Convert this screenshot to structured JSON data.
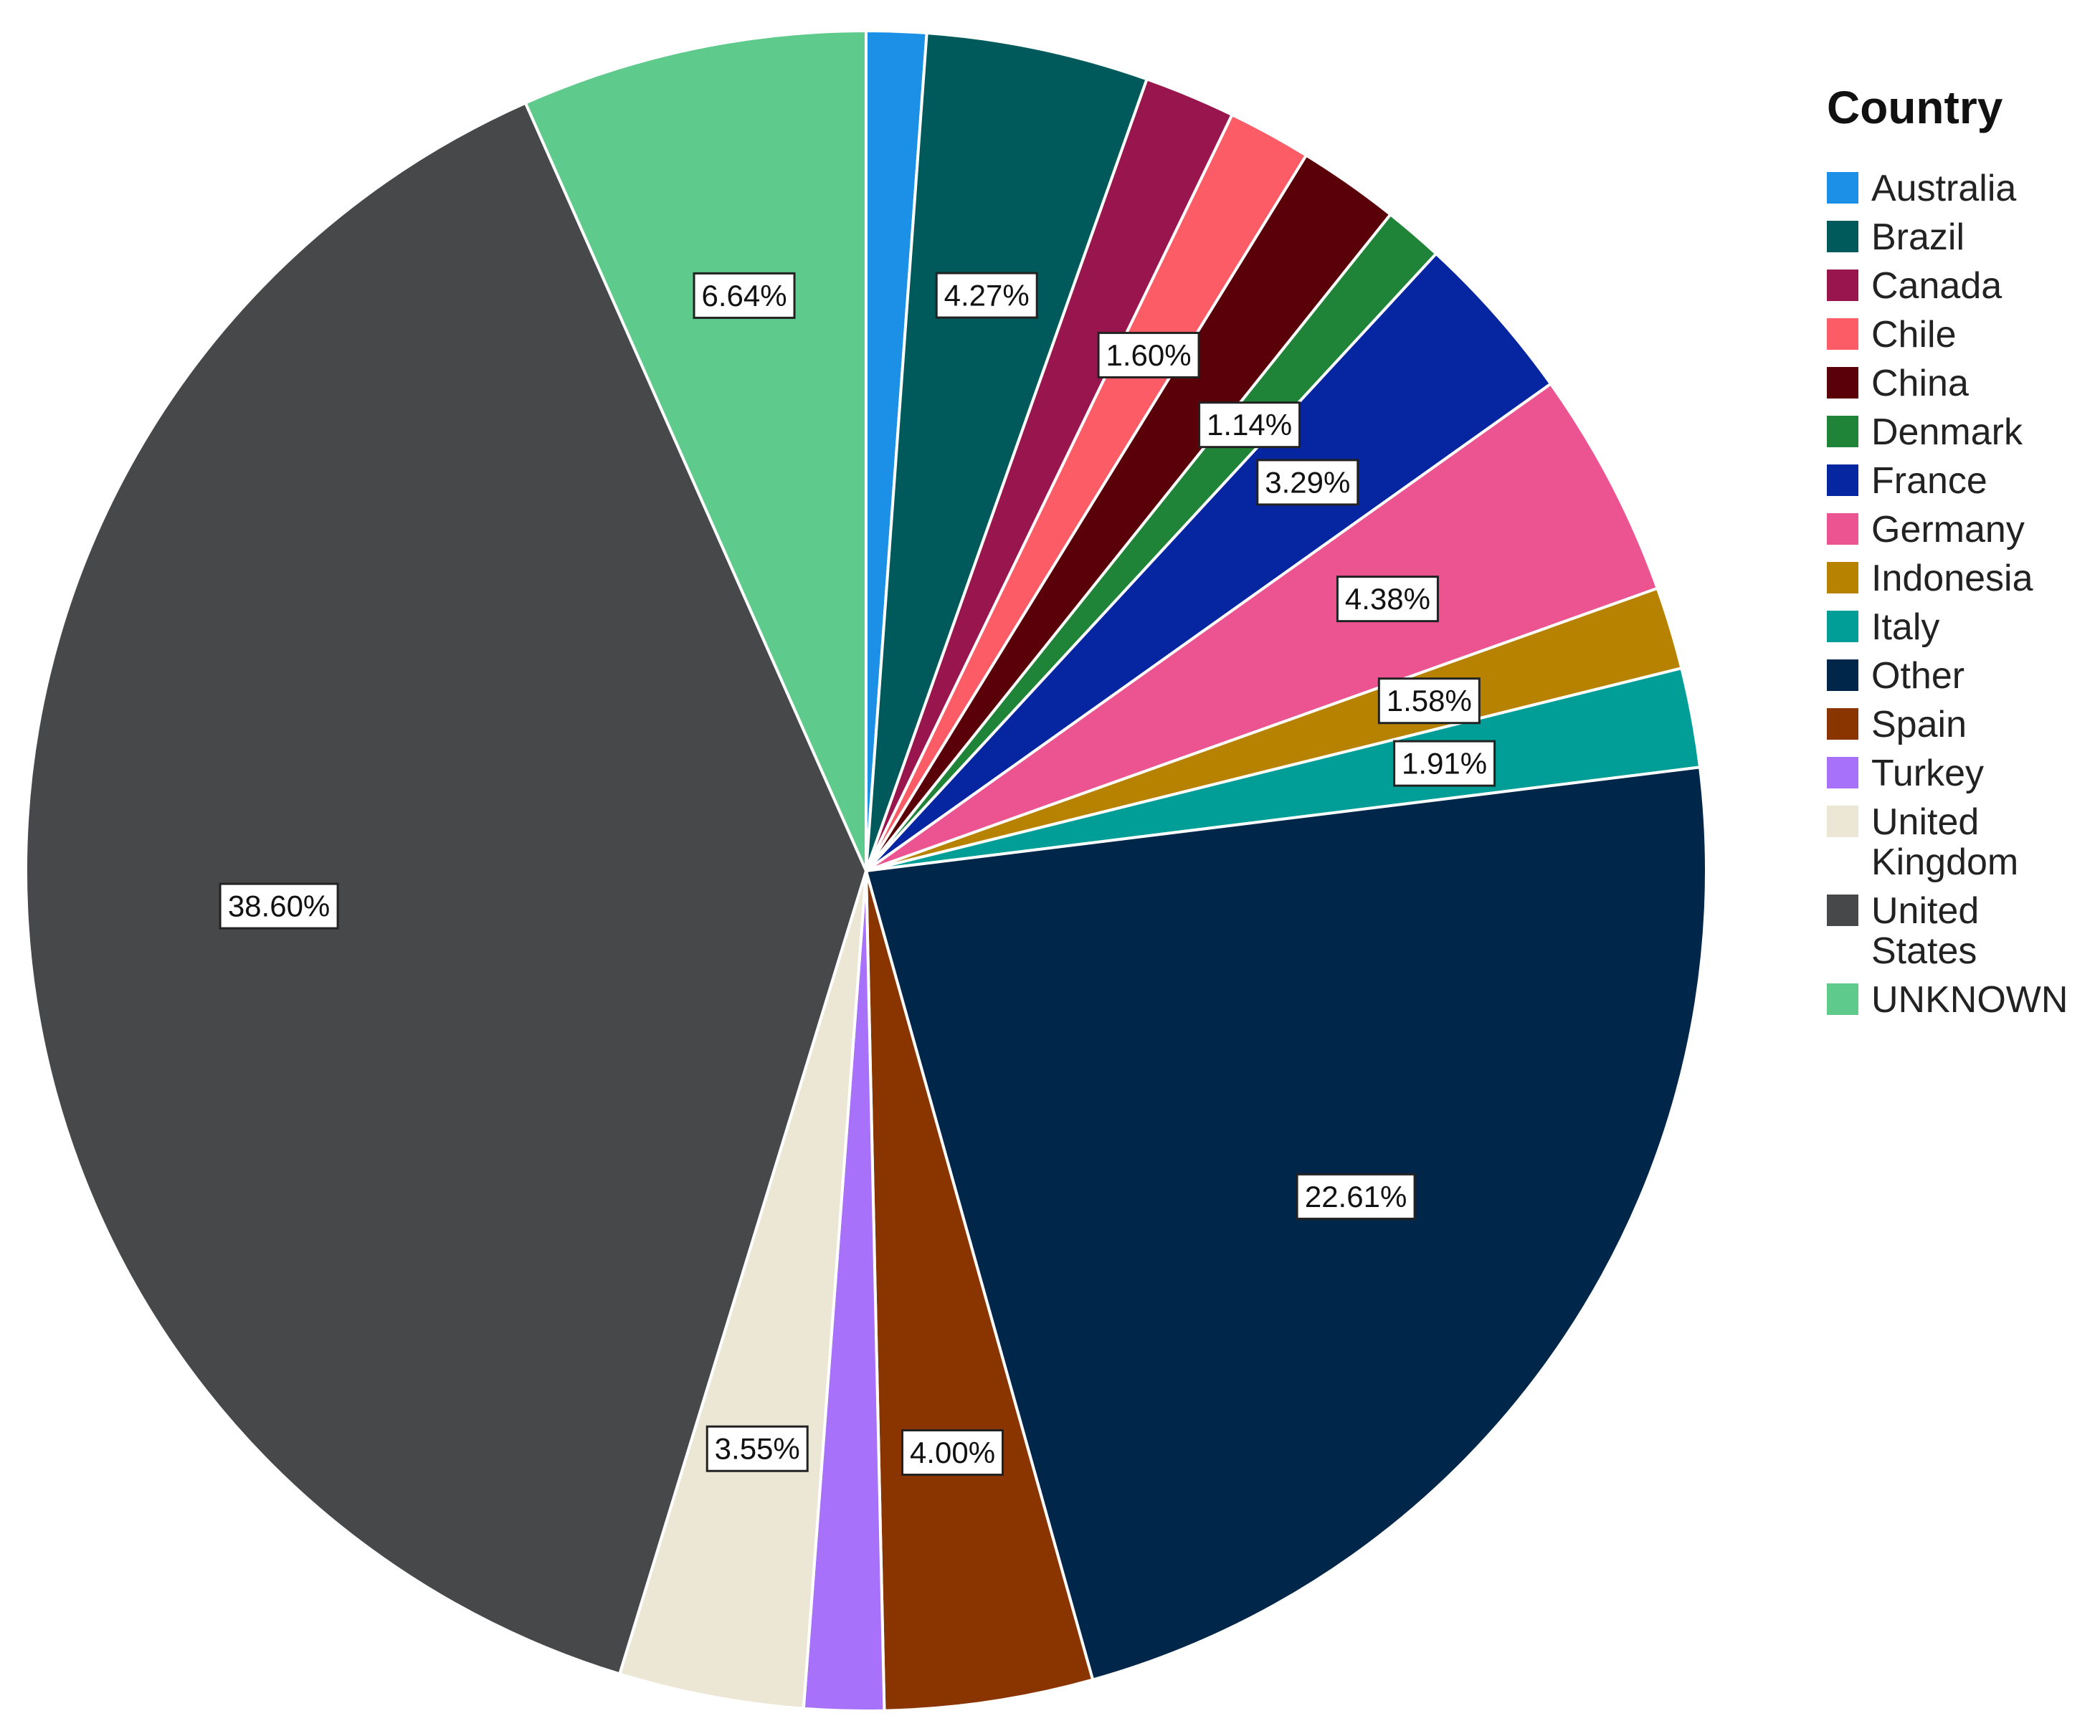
{
  "chart_data": {
    "type": "pie",
    "title": "",
    "legend_title": "Country",
    "legend_position": "right",
    "start": "12 o'clock, clockwise",
    "slices": [
      {
        "label": "Australia",
        "value": 1.15,
        "display": "",
        "color": "#1c8fe6"
      },
      {
        "label": "Brazil",
        "value": 4.27,
        "display": "4.27%",
        "color": "#005a5c"
      },
      {
        "label": "Canada",
        "value": 1.75,
        "display": "",
        "color": "#99154e"
      },
      {
        "label": "Chile",
        "value": 1.6,
        "display": "1.60%",
        "color": "#fc5c65"
      },
      {
        "label": "China",
        "value": 1.95,
        "display": "",
        "color": "#5a0008"
      },
      {
        "label": "Denmark",
        "value": 1.14,
        "display": "1.14%",
        "color": "#1f8437"
      },
      {
        "label": "France",
        "value": 3.29,
        "display": "3.29%",
        "color": "#0625a0"
      },
      {
        "label": "Germany",
        "value": 4.38,
        "display": "4.38%",
        "color": "#ec5491"
      },
      {
        "label": "Indonesia",
        "value": 1.58,
        "display": "1.58%",
        "color": "#b68200"
      },
      {
        "label": "Italy",
        "value": 1.91,
        "display": "1.91%",
        "color": "#009e96"
      },
      {
        "label": "Other",
        "value": 22.61,
        "display": "22.61%",
        "color": "#00264a"
      },
      {
        "label": "Spain",
        "value": 4.0,
        "display": "4.00%",
        "color": "#8a3500"
      },
      {
        "label": "Turkey",
        "value": 1.53,
        "display": "",
        "color": "#a771fa"
      },
      {
        "label": "United Kingdom",
        "value": 3.55,
        "display": "3.55%",
        "color": "#ece6d5"
      },
      {
        "label": "United States",
        "value": 38.6,
        "display": "38.60%",
        "color": "#474849"
      },
      {
        "label": "UNKNOWN",
        "value": 6.64,
        "display": "6.64%",
        "color": "#5eca8b"
      }
    ]
  }
}
